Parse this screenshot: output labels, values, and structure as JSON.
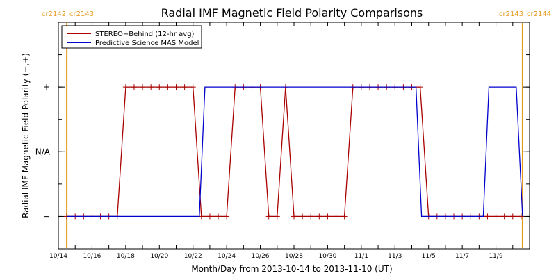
{
  "chart_data": {
    "type": "line",
    "title": "Radial IMF Magnetic Field Polarity Comparisons",
    "xlabel": "Month/Day from 2013-10-14 to 2013-11-10 (UT)",
    "ylabel": "Radial IMF Magnetic Field Polarity (−,+)",
    "xlim": [
      "2013-10-14",
      "2013-11-10"
    ],
    "x_ticks": [
      "10/14",
      "10/16",
      "10/18",
      "10/20",
      "10/22",
      "10/24",
      "10/26",
      "10/28",
      "10/30",
      "11/1",
      "11/3",
      "11/5",
      "11/7",
      "11/9"
    ],
    "y_ticks": [
      "+",
      "N/A",
      "−"
    ],
    "y_levels": {
      "plus": 1,
      "na": 0,
      "minus": -1
    },
    "ylim": [
      -1.5,
      2
    ],
    "legend_position": "top-left",
    "carrington": {
      "left_labels": [
        "cr2142",
        "cr2143"
      ],
      "right_labels": [
        "cr2143",
        "cr2144"
      ],
      "boundaries": [
        "2013-10-14T12:00",
        "2013-11-10T14:00"
      ],
      "color": "#e69a1c"
    },
    "series": [
      {
        "name": "STEREO−Behind (12-hr avg)",
        "color": "#aa0000",
        "marker": "+",
        "points": [
          [
            "2013-10-14T12:00",
            -1
          ],
          [
            "2013-10-15T00:00",
            -1
          ],
          [
            "2013-10-15T12:00",
            -1
          ],
          [
            "2013-10-16T00:00",
            -1
          ],
          [
            "2013-10-16T12:00",
            -1
          ],
          [
            "2013-10-17T00:00",
            -1
          ],
          [
            "2013-10-17T12:00",
            -1
          ],
          [
            "2013-10-18T00:00",
            1
          ],
          [
            "2013-10-18T12:00",
            1
          ],
          [
            "2013-10-19T00:00",
            1
          ],
          [
            "2013-10-19T12:00",
            1
          ],
          [
            "2013-10-20T00:00",
            1
          ],
          [
            "2013-10-20T12:00",
            1
          ],
          [
            "2013-10-21T00:00",
            1
          ],
          [
            "2013-10-21T12:00",
            1
          ],
          [
            "2013-10-22T00:00",
            1
          ],
          [
            "2013-10-22T12:00",
            -1
          ],
          [
            "2013-10-23T00:00",
            -1
          ],
          [
            "2013-10-23T12:00",
            -1
          ],
          [
            "2013-10-24T00:00",
            -1
          ],
          [
            "2013-10-24T12:00",
            1
          ],
          [
            "2013-10-25T00:00",
            1
          ],
          [
            "2013-10-25T12:00",
            1
          ],
          [
            "2013-10-26T00:00",
            1
          ],
          [
            "2013-10-26T12:00",
            -1
          ],
          [
            "2013-10-27T00:00",
            -1
          ],
          [
            "2013-10-27T12:00",
            1
          ],
          [
            "2013-10-28T00:00",
            -1
          ],
          [
            "2013-10-28T12:00",
            -1
          ],
          [
            "2013-10-29T00:00",
            -1
          ],
          [
            "2013-10-29T12:00",
            -1
          ],
          [
            "2013-10-30T00:00",
            -1
          ],
          [
            "2013-10-30T12:00",
            -1
          ],
          [
            "2013-10-31T00:00",
            -1
          ],
          [
            "2013-10-31T12:00",
            1
          ],
          [
            "2013-11-01T00:00",
            1
          ],
          [
            "2013-11-01T12:00",
            1
          ],
          [
            "2013-11-02T00:00",
            1
          ],
          [
            "2013-11-02T12:00",
            1
          ],
          [
            "2013-11-03T00:00",
            1
          ],
          [
            "2013-11-03T12:00",
            1
          ],
          [
            "2013-11-04T00:00",
            1
          ],
          [
            "2013-11-04T12:00",
            1
          ],
          [
            "2013-11-05T00:00",
            -1
          ],
          [
            "2013-11-05T12:00",
            -1
          ],
          [
            "2013-11-06T00:00",
            -1
          ],
          [
            "2013-11-06T12:00",
            -1
          ],
          [
            "2013-11-07T00:00",
            -1
          ],
          [
            "2013-11-07T12:00",
            -1
          ],
          [
            "2013-11-08T00:00",
            -1
          ],
          [
            "2013-11-08T12:00",
            -1
          ],
          [
            "2013-11-09T00:00",
            -1
          ],
          [
            "2013-11-09T12:00",
            -1
          ],
          [
            "2013-11-10T00:00",
            -1
          ],
          [
            "2013-11-10T12:00",
            -1
          ]
        ]
      },
      {
        "name": "Predictive Science MAS Model",
        "color": "#0000cc",
        "marker": "none",
        "points": [
          [
            "2013-10-14T12:00",
            -1
          ],
          [
            "2013-10-22T09:00",
            -1
          ],
          [
            "2013-10-22T17:00",
            1
          ],
          [
            "2013-11-04T06:00",
            1
          ],
          [
            "2013-11-04T14:00",
            -1
          ],
          [
            "2013-11-08T06:00",
            -1
          ],
          [
            "2013-11-08T14:00",
            1
          ],
          [
            "2013-11-10T05:00",
            1
          ],
          [
            "2013-11-10T14:00",
            -1
          ]
        ]
      }
    ]
  }
}
